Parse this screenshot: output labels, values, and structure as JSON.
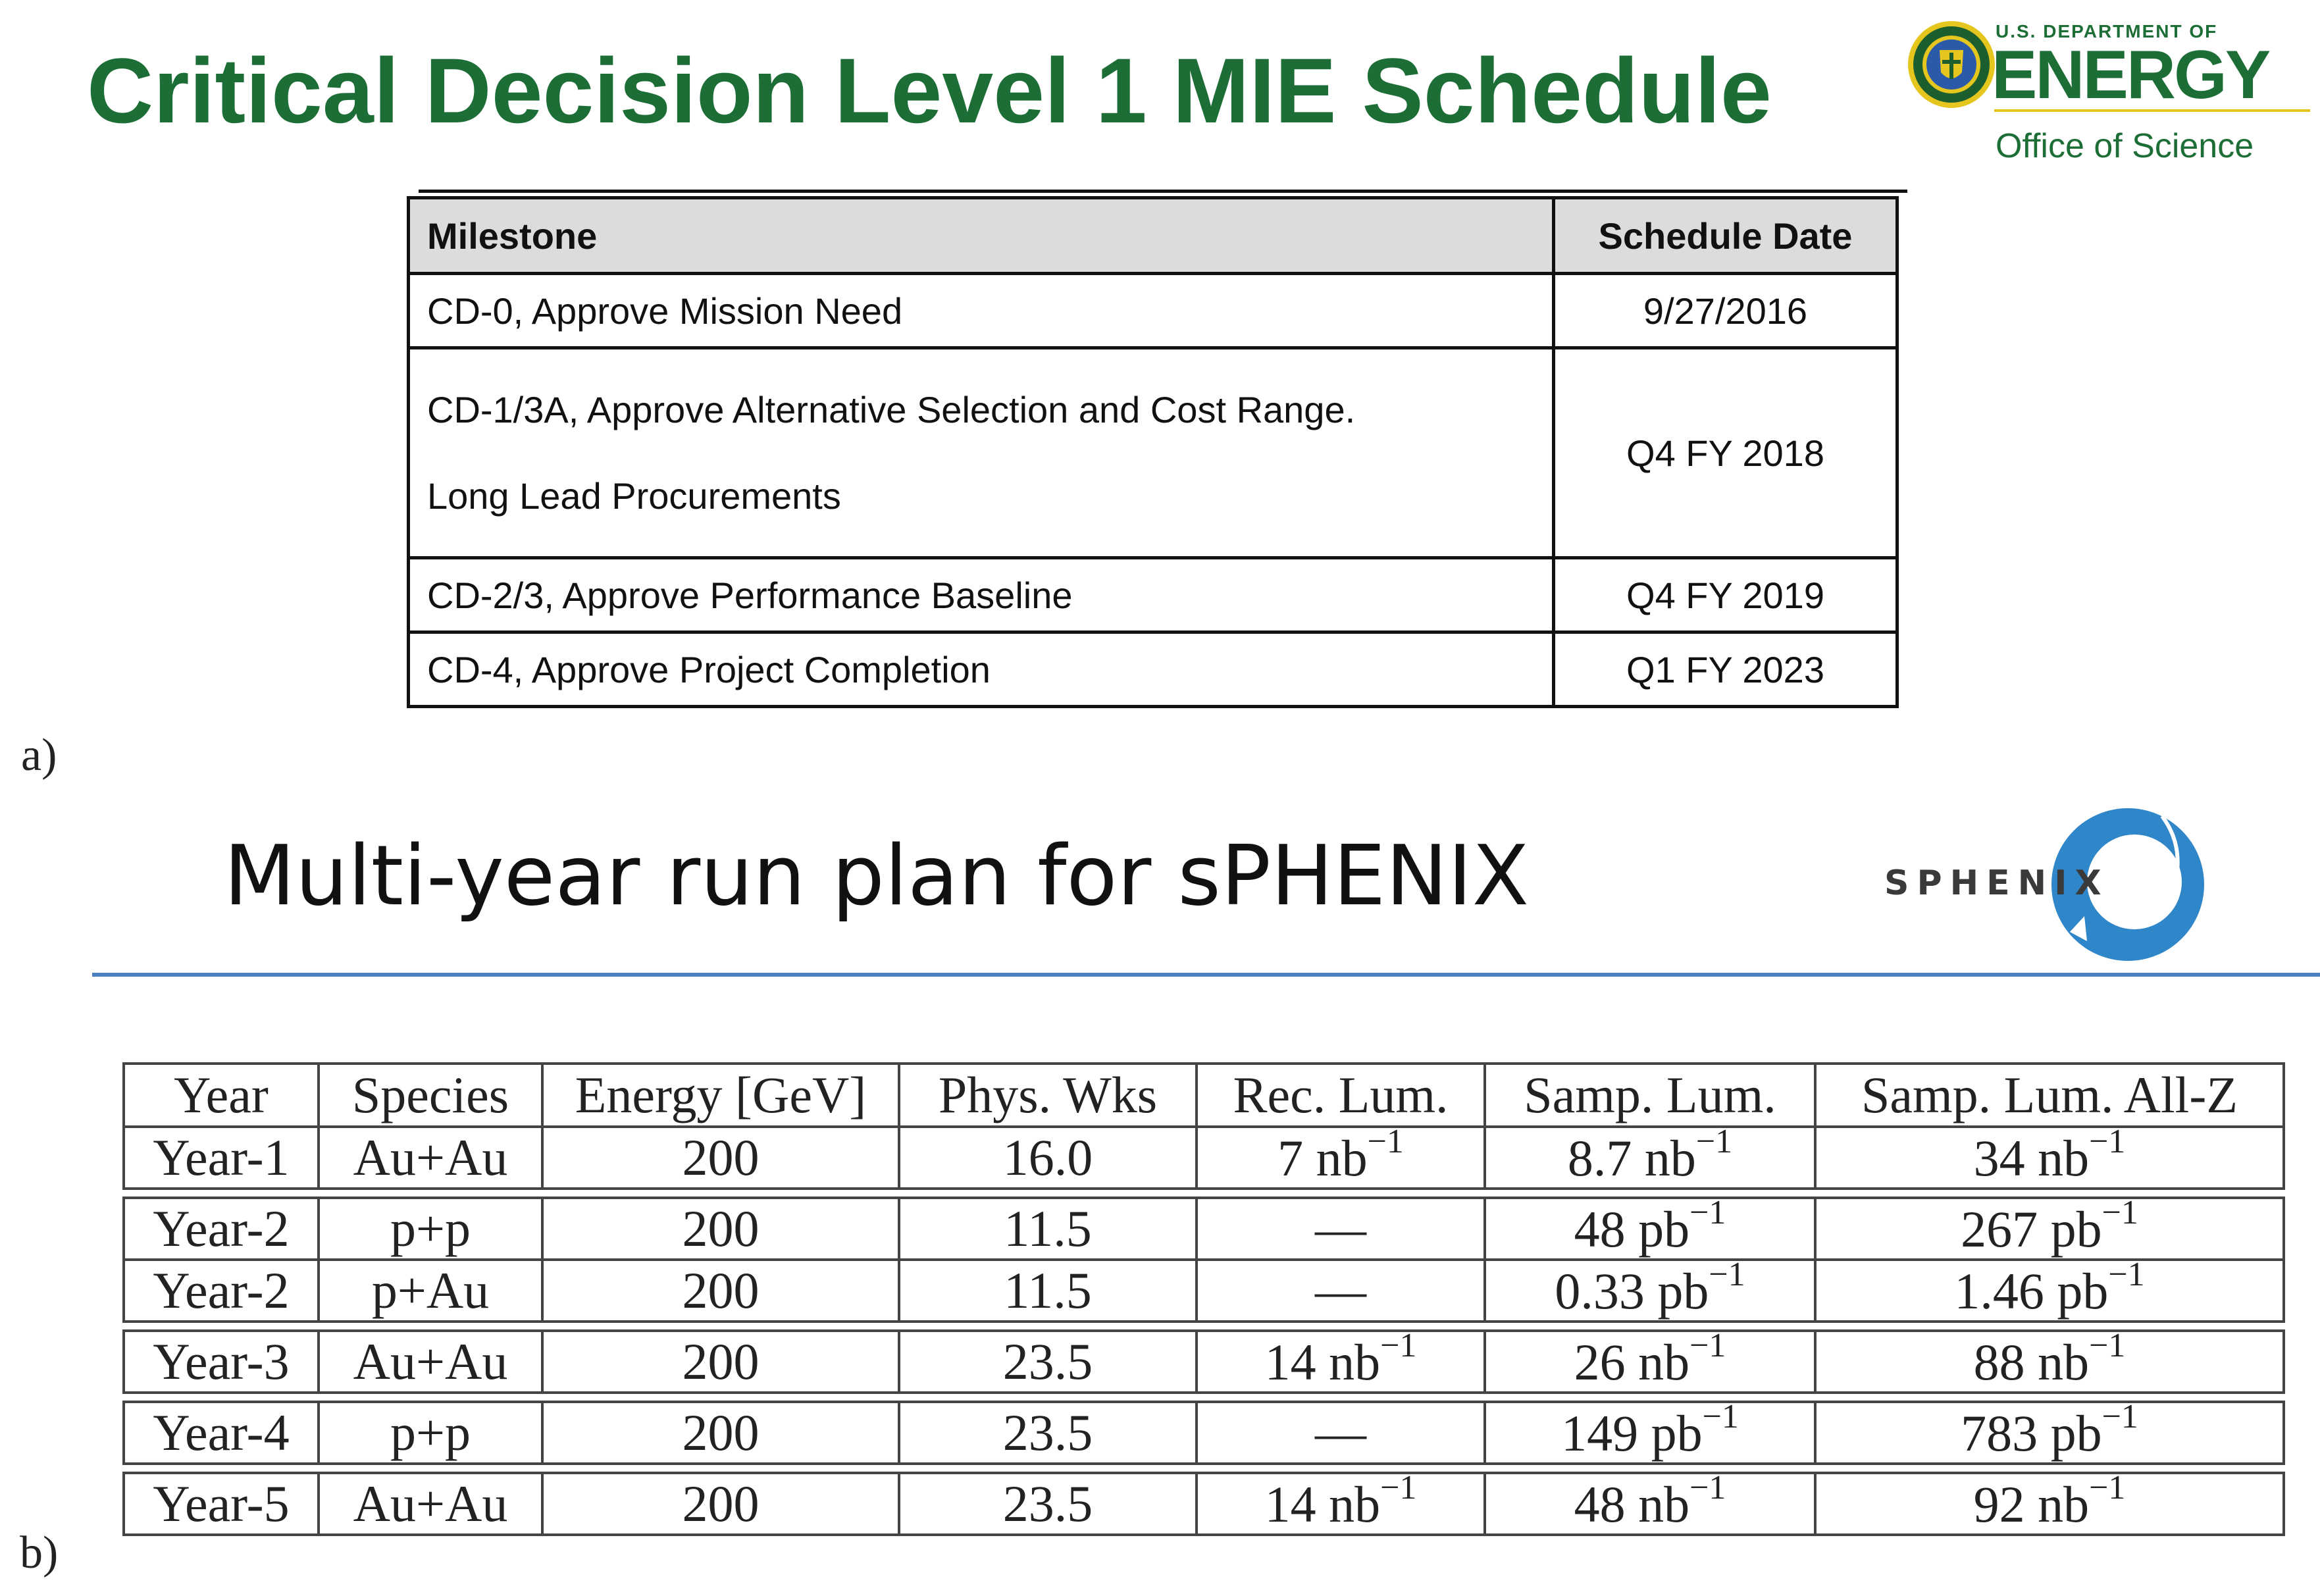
{
  "part_a": {
    "label": "a)",
    "title": "Critical Decision Level 1 MIE Schedule",
    "logo": {
      "icon": "doe-seal-icon",
      "department": "U.S. DEPARTMENT OF",
      "name": "ENERGY",
      "office": "Office of Science",
      "colors": {
        "green": "#1d6e36",
        "gold": "#e5c61e"
      }
    },
    "table": {
      "headers": [
        "Milestone",
        "Schedule Date"
      ],
      "rows": [
        {
          "milestone": "CD-0, Approve Mission Need",
          "date": "9/27/2016"
        },
        {
          "milestone_line1": "CD-1/3A, Approve Alternative Selection and Cost Range.",
          "milestone_line2": "Long Lead Procurements",
          "date": "Q4 FY 2018"
        },
        {
          "milestone": "CD-2/3, Approve Performance Baseline",
          "date": "Q4 FY 2019"
        },
        {
          "milestone": "CD-4, Approve Project Completion",
          "date": "Q1 FY 2023"
        }
      ]
    }
  },
  "part_b": {
    "label": "b)",
    "title": "Multi-year run plan for sPHENIX",
    "logo": {
      "text": "SPHENIX",
      "icon": "sphenix-ring-icon",
      "color": "#2f86c8"
    },
    "table": {
      "headers": [
        "Year",
        "Species",
        "Energy [GeV]",
        "Phys. Wks",
        "Rec. Lum.",
        "Samp. Lum.",
        "Samp. Lum. All-Z"
      ],
      "rows": [
        {
          "year": "Year-1",
          "species": "Au+Au",
          "energy": "200",
          "wks": "16.0",
          "rec": {
            "val": "7",
            "unit": "nb",
            "exp": "−1"
          },
          "samp": {
            "val": "8.7",
            "unit": "nb",
            "exp": "−1"
          },
          "allz": {
            "val": "34",
            "unit": "nb",
            "exp": "−1"
          }
        },
        {
          "year": "Year-2",
          "species": "p+p",
          "energy": "200",
          "wks": "11.5",
          "rec": {
            "val": "—"
          },
          "samp": {
            "val": "48",
            "unit": "pb",
            "exp": "−1"
          },
          "allz": {
            "val": "267",
            "unit": "pb",
            "exp": "−1"
          }
        },
        {
          "year": "Year-2",
          "species": "p+Au",
          "energy": "200",
          "wks": "11.5",
          "rec": {
            "val": "—"
          },
          "samp": {
            "val": "0.33",
            "unit": "pb",
            "exp": "−1"
          },
          "allz": {
            "val": "1.46",
            "unit": "pb",
            "exp": "−1"
          }
        },
        {
          "year": "Year-3",
          "species": "Au+Au",
          "energy": "200",
          "wks": "23.5",
          "rec": {
            "val": "14",
            "unit": "nb",
            "exp": "−1"
          },
          "samp": {
            "val": "26",
            "unit": "nb",
            "exp": "−1"
          },
          "allz": {
            "val": "88",
            "unit": "nb",
            "exp": "−1"
          }
        },
        {
          "year": "Year-4",
          "species": "p+p",
          "energy": "200",
          "wks": "23.5",
          "rec": {
            "val": "—"
          },
          "samp": {
            "val": "149",
            "unit": "pb",
            "exp": "−1"
          },
          "allz": {
            "val": "783",
            "unit": "pb",
            "exp": "−1"
          }
        },
        {
          "year": "Year-5",
          "species": "Au+Au",
          "energy": "200",
          "wks": "23.5",
          "rec": {
            "val": "14",
            "unit": "nb",
            "exp": "−1"
          },
          "samp": {
            "val": "48",
            "unit": "nb",
            "exp": "−1"
          },
          "allz": {
            "val": "92",
            "unit": "nb",
            "exp": "−1"
          }
        }
      ]
    }
  }
}
